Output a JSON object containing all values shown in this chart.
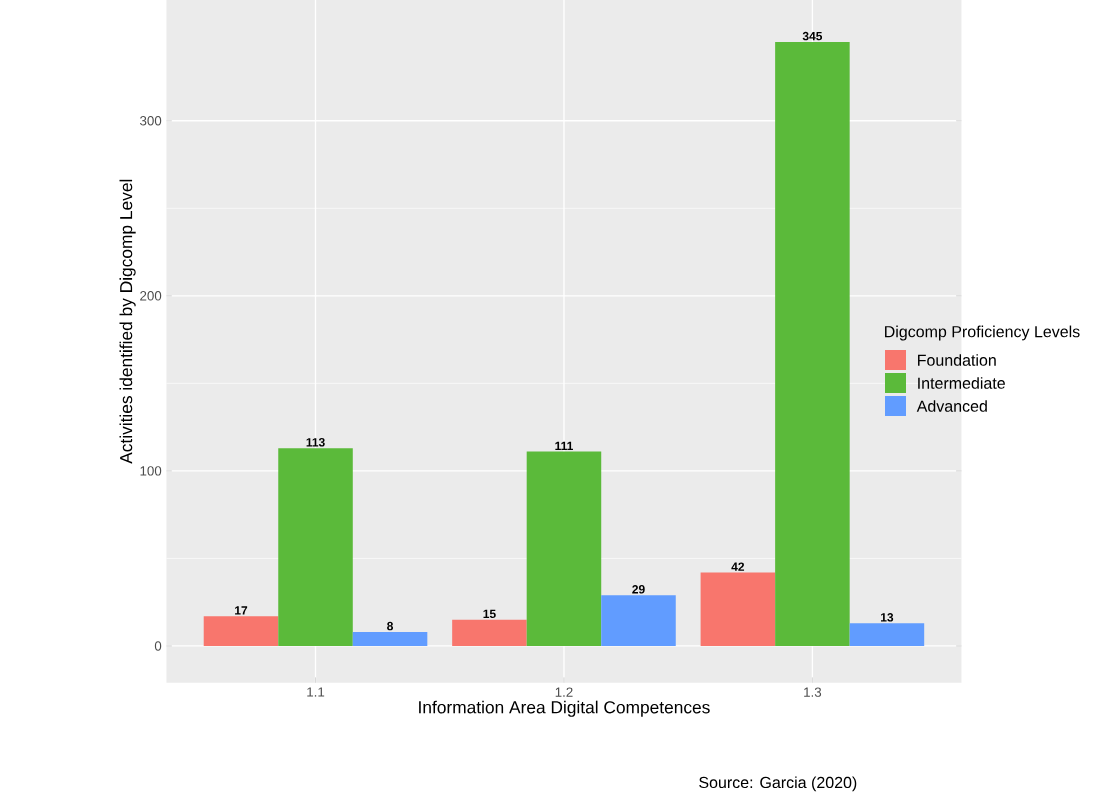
{
  "chart_data": {
    "type": "bar",
    "xlabel": "Information Area Digital Competences",
    "ylabel": "Activities identified by Digcomp Level",
    "legend_title": "Digcomp Proficiency Levels",
    "categories": [
      "1.1",
      "1.2",
      "1.3"
    ],
    "series": [
      {
        "name": "Foundation",
        "color": "#F8766D",
        "values": [
          17,
          15,
          42
        ]
      },
      {
        "name": "Intermediate",
        "color": "#5BBA3A",
        "values": [
          113,
          111,
          345
        ]
      },
      {
        "name": "Advanced",
        "color": "#619CFF",
        "values": [
          8,
          29,
          13
        ]
      }
    ],
    "ylim": [
      -21,
      392
    ],
    "yticks": [
      0,
      100,
      200,
      300
    ],
    "grid": true,
    "legend": "right",
    "data_labels": true,
    "annotations": [
      "Source: Garcia (2020)"
    ]
  }
}
